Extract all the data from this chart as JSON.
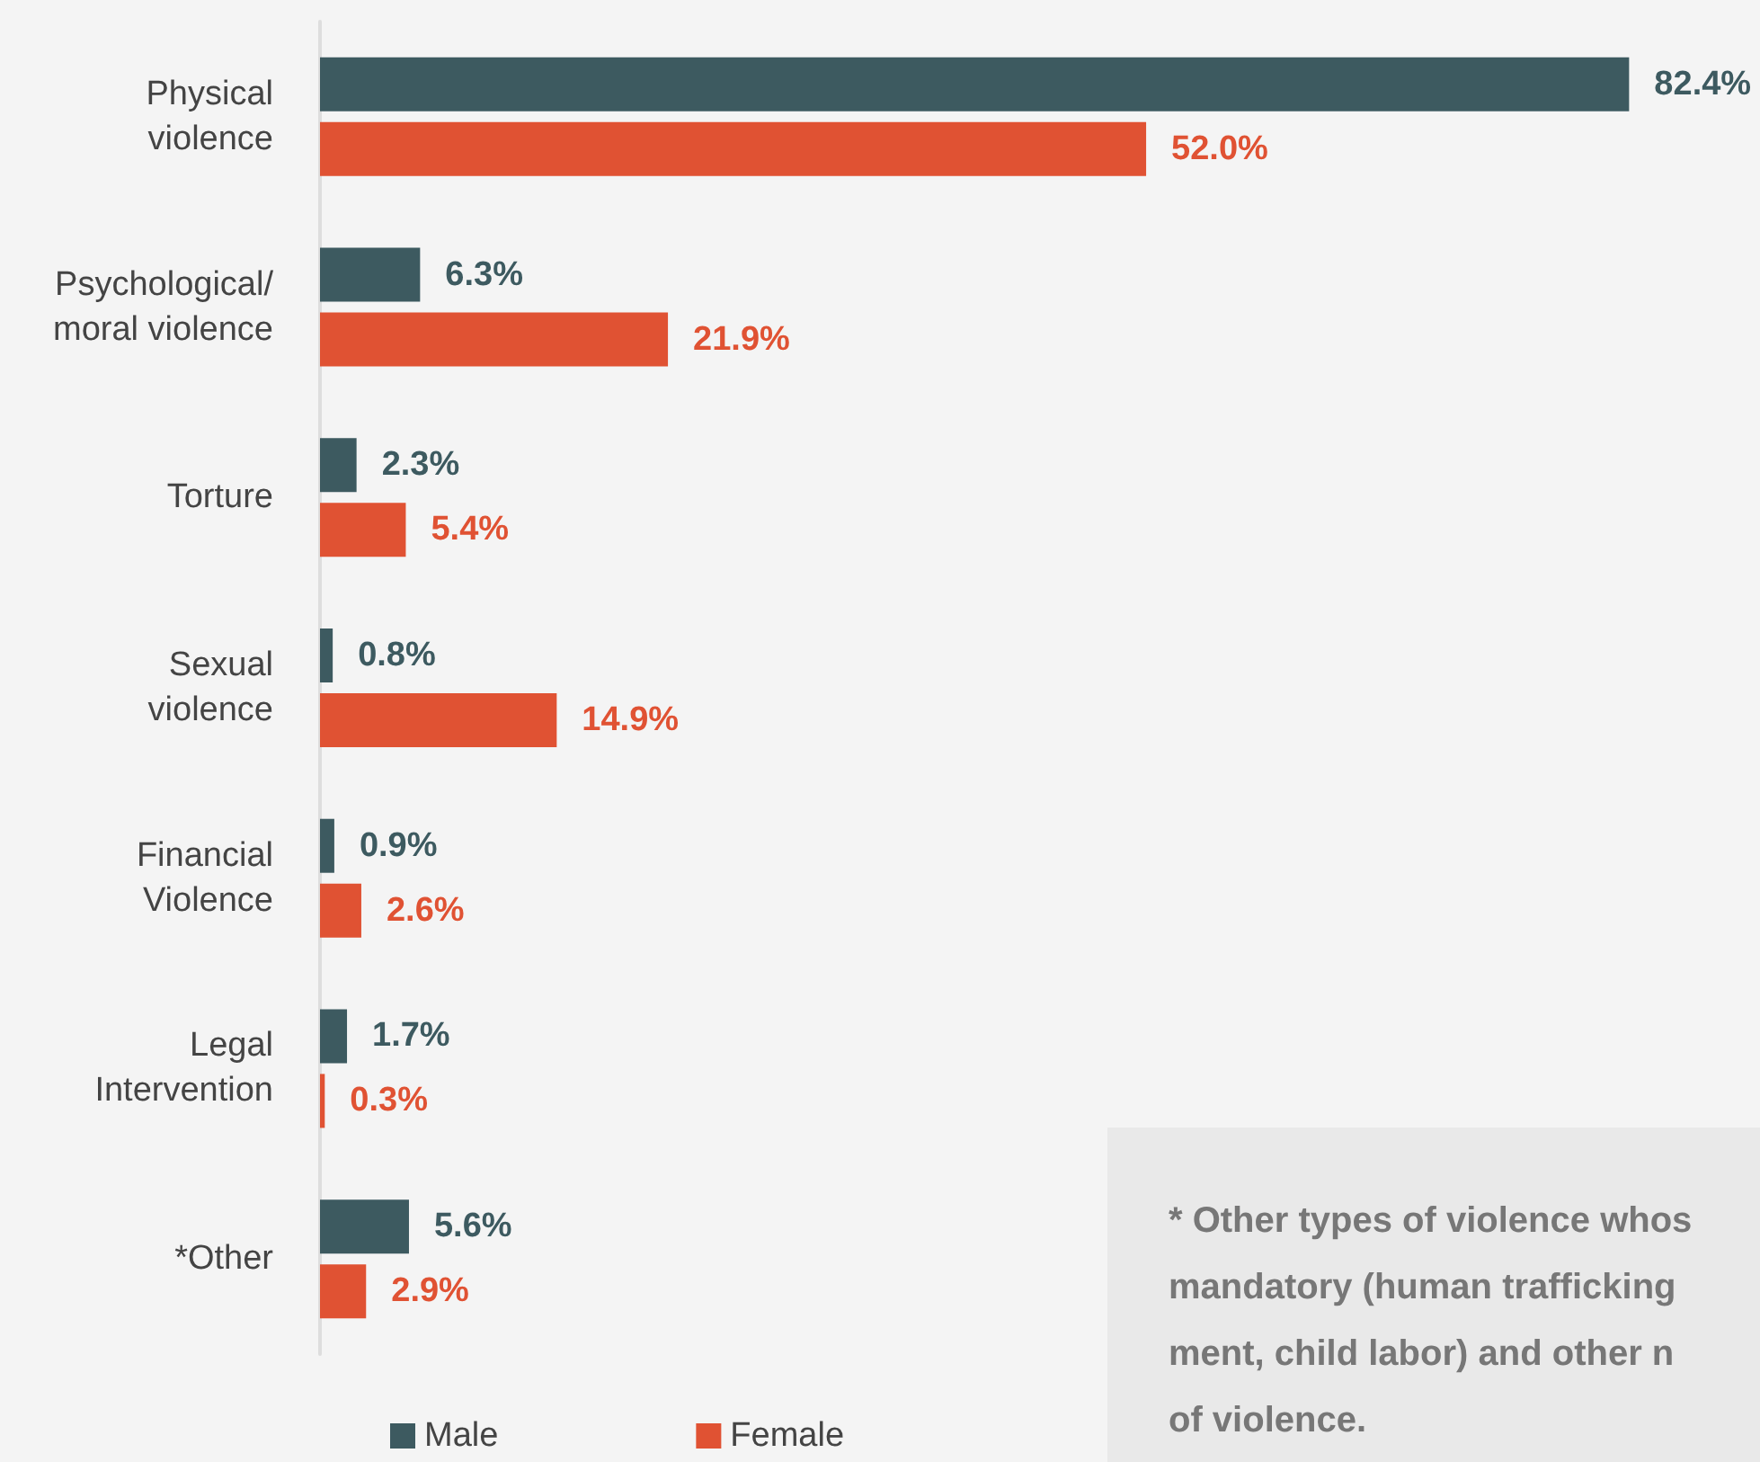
{
  "chart_data": {
    "type": "bar",
    "orientation": "horizontal",
    "categories": [
      "Physical\nviolence",
      "Psychological/\nmoral violence",
      "Torture",
      "Sexual\nviolence",
      "Financial\nViolence",
      "Legal\nIntervention",
      "*Other"
    ],
    "series": [
      {
        "name": "Male",
        "color": "#3d5a60",
        "values": [
          82.4,
          6.3,
          2.3,
          0.8,
          0.9,
          1.7,
          5.6
        ],
        "value_labels": [
          "82.4%",
          "6.3%",
          "2.3%",
          "0.8%",
          "0.9%",
          "1.7%",
          "5.6%"
        ]
      },
      {
        "name": "Female",
        "color": "#e05233",
        "values": [
          52.0,
          21.9,
          5.4,
          14.9,
          2.6,
          0.3,
          2.9
        ],
        "value_labels": [
          "52.0%",
          "21.9%",
          "5.4%",
          "14.9%",
          "2.6%",
          "0.3%",
          "2.9%"
        ]
      }
    ],
    "legend": "bottom left",
    "annotations": [
      "* Other types of violence whos\nmandatory (human trafficking\nment, child labor) and other n\nof violence."
    ]
  }
}
